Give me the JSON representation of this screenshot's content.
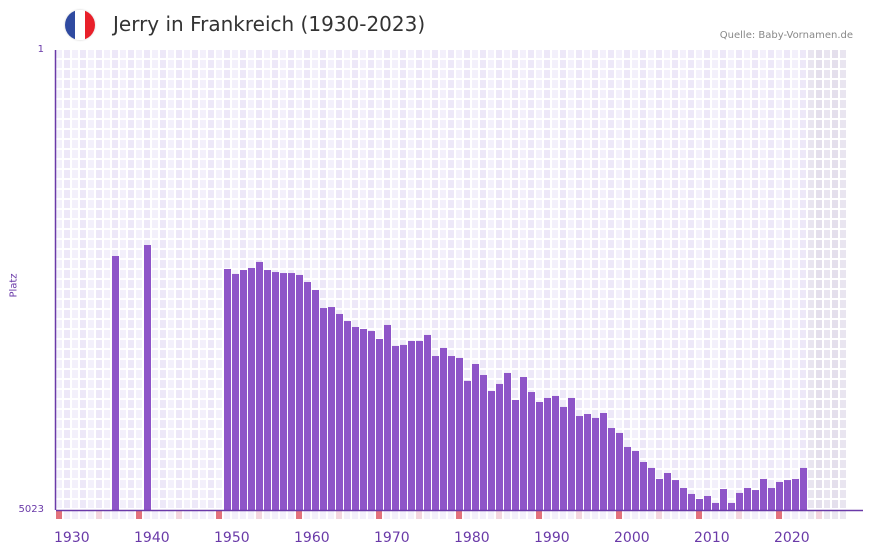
{
  "header": {
    "title": "Jerry in Frankreich (1930-2023)",
    "source": "Quelle: Baby-Vornamen.de",
    "flag_colors": [
      "#2f4aa0",
      "#ffffff",
      "#e8202a"
    ]
  },
  "colors": {
    "bar": "#8e55c8",
    "axis": "#6a3aa8",
    "decade_marker": "#e2727c",
    "half_marker": "#f3d6df"
  },
  "chart_data": {
    "type": "bar",
    "title": "Jerry in Frankreich (1930-2023)",
    "ylabel": "Platz",
    "xlabel": "",
    "ylim": [
      5023,
      1
    ],
    "y_inverted": true,
    "ytick_labels": [
      "1",
      "5023"
    ],
    "xlim": [
      1930,
      2028
    ],
    "xtick_labels": [
      "1930",
      "1940",
      "1950",
      "1960",
      "1970",
      "1980",
      "1990",
      "2000",
      "2010",
      "2020"
    ],
    "grid": true,
    "x": [
      1937,
      1941,
      1951,
      1952,
      1953,
      1954,
      1955,
      1956,
      1957,
      1958,
      1959,
      1960,
      1961,
      1962,
      1963,
      1964,
      1965,
      1966,
      1967,
      1968,
      1969,
      1970,
      1971,
      1972,
      1973,
      1974,
      1975,
      1976,
      1977,
      1978,
      1979,
      1980,
      1981,
      1982,
      1983,
      1984,
      1985,
      1986,
      1987,
      1988,
      1989,
      1990,
      1991,
      1992,
      1993,
      1994,
      1995,
      1996,
      1997,
      1998,
      1999,
      2000,
      2001,
      2002,
      2003,
      2004,
      2005,
      2006,
      2007,
      2008,
      2009,
      2010,
      2011,
      2012,
      2013,
      2014,
      2015,
      2016,
      2017,
      2018,
      2019,
      2020,
      2021,
      2022,
      2023
    ],
    "values": [
      2250,
      2130,
      2392,
      2446,
      2403,
      2381,
      2315,
      2403,
      2425,
      2436,
      2436,
      2457,
      2534,
      2621,
      2818,
      2807,
      2883,
      2960,
      3025,
      3047,
      3069,
      3156,
      3003,
      3232,
      3221,
      3178,
      3178,
      3112,
      3342,
      3254,
      3342,
      3363,
      3614,
      3429,
      3549,
      3724,
      3647,
      3527,
      3822,
      3571,
      3735,
      3844,
      3800,
      3778,
      3898,
      3800,
      3997,
      3975,
      4018,
      3964,
      4128,
      4182,
      4335,
      4379,
      4499,
      4564,
      4684,
      4619,
      4696,
      4783,
      4848,
      4903,
      4870,
      4946,
      4794,
      4946,
      4837,
      4783,
      4805,
      4684,
      4783,
      4717,
      4696,
      4684,
      4564
    ]
  }
}
